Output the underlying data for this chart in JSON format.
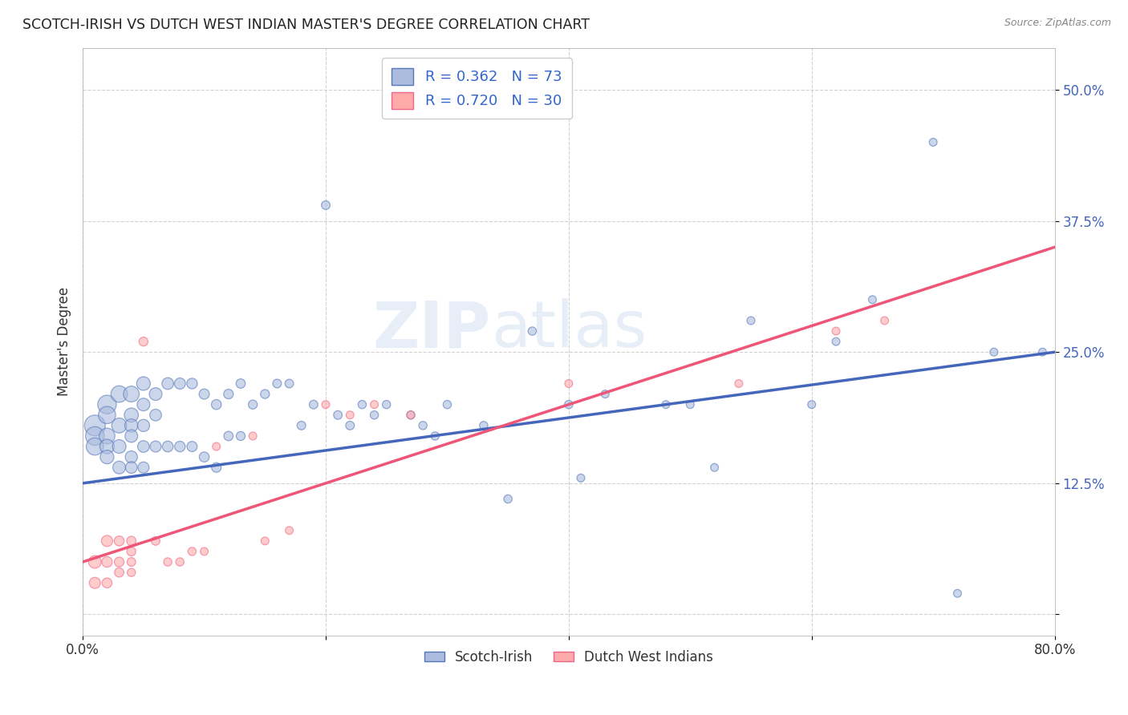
{
  "title": "SCOTCH-IRISH VS DUTCH WEST INDIAN MASTER'S DEGREE CORRELATION CHART",
  "source_text": "Source: ZipAtlas.com",
  "ylabel": "Master's Degree",
  "xlim": [
    0.0,
    0.8
  ],
  "ylim": [
    -0.02,
    0.54
  ],
  "yticks": [
    0.0,
    0.125,
    0.25,
    0.375,
    0.5
  ],
  "ytick_labels": [
    "",
    "12.5%",
    "25.0%",
    "37.5%",
    "50.0%"
  ],
  "xticks": [
    0.0,
    0.2,
    0.4,
    0.6,
    0.8
  ],
  "xtick_labels": [
    "0.0%",
    "",
    "",
    "",
    "80.0%"
  ],
  "blue_R": 0.362,
  "blue_N": 73,
  "pink_R": 0.72,
  "pink_N": 30,
  "blue_color": "#aabbdd",
  "pink_color": "#ffaaaa",
  "blue_edge_color": "#5577bb",
  "pink_edge_color": "#ee6688",
  "blue_line_color": "#4466bb",
  "pink_line_color": "#ee5577",
  "legend_label_blue": "Scotch-Irish",
  "legend_label_pink": "Dutch West Indians",
  "watermark_zip": "ZIP",
  "watermark_atlas": "atlas",
  "background_color": "#ffffff",
  "blue_line_x0": 0.0,
  "blue_line_y0": 0.125,
  "blue_line_x1": 0.8,
  "blue_line_y1": 0.25,
  "pink_line_x0": 0.0,
  "pink_line_y0": 0.05,
  "pink_line_x1": 0.8,
  "pink_line_y1": 0.35,
  "blue_scatter_x": [
    0.01,
    0.01,
    0.01,
    0.02,
    0.02,
    0.02,
    0.02,
    0.02,
    0.03,
    0.03,
    0.03,
    0.03,
    0.04,
    0.04,
    0.04,
    0.04,
    0.04,
    0.04,
    0.05,
    0.05,
    0.05,
    0.05,
    0.05,
    0.06,
    0.06,
    0.06,
    0.07,
    0.07,
    0.08,
    0.08,
    0.09,
    0.09,
    0.1,
    0.1,
    0.11,
    0.11,
    0.12,
    0.12,
    0.13,
    0.13,
    0.14,
    0.15,
    0.16,
    0.17,
    0.18,
    0.19,
    0.2,
    0.21,
    0.22,
    0.23,
    0.24,
    0.25,
    0.27,
    0.28,
    0.29,
    0.3,
    0.33,
    0.35,
    0.37,
    0.4,
    0.41,
    0.43,
    0.48,
    0.5,
    0.52,
    0.55,
    0.6,
    0.62,
    0.65,
    0.7,
    0.72,
    0.75,
    0.79
  ],
  "blue_scatter_y": [
    0.18,
    0.17,
    0.16,
    0.2,
    0.19,
    0.17,
    0.16,
    0.15,
    0.21,
    0.18,
    0.16,
    0.14,
    0.21,
    0.19,
    0.18,
    0.17,
    0.15,
    0.14,
    0.22,
    0.2,
    0.18,
    0.16,
    0.14,
    0.21,
    0.19,
    0.16,
    0.22,
    0.16,
    0.22,
    0.16,
    0.22,
    0.16,
    0.21,
    0.15,
    0.2,
    0.14,
    0.21,
    0.17,
    0.22,
    0.17,
    0.2,
    0.21,
    0.22,
    0.22,
    0.18,
    0.2,
    0.39,
    0.19,
    0.18,
    0.2,
    0.19,
    0.2,
    0.19,
    0.18,
    0.17,
    0.2,
    0.18,
    0.11,
    0.27,
    0.2,
    0.13,
    0.21,
    0.2,
    0.2,
    0.14,
    0.28,
    0.2,
    0.26,
    0.3,
    0.45,
    0.02,
    0.25,
    0.25
  ],
  "blue_scatter_sizes": [
    350,
    280,
    240,
    280,
    240,
    200,
    170,
    150,
    220,
    180,
    150,
    130,
    200,
    160,
    140,
    130,
    120,
    110,
    150,
    130,
    120,
    110,
    100,
    130,
    110,
    100,
    110,
    95,
    100,
    90,
    90,
    85,
    85,
    80,
    80,
    75,
    75,
    70,
    70,
    65,
    65,
    65,
    60,
    60,
    60,
    60,
    60,
    60,
    60,
    55,
    55,
    55,
    55,
    55,
    55,
    55,
    55,
    55,
    55,
    55,
    50,
    50,
    50,
    50,
    50,
    50,
    50,
    50,
    50,
    50,
    50,
    50,
    50
  ],
  "pink_scatter_x": [
    0.01,
    0.01,
    0.02,
    0.02,
    0.02,
    0.03,
    0.03,
    0.03,
    0.04,
    0.04,
    0.04,
    0.04,
    0.05,
    0.06,
    0.07,
    0.08,
    0.09,
    0.1,
    0.11,
    0.14,
    0.15,
    0.17,
    0.2,
    0.22,
    0.24,
    0.27,
    0.4,
    0.54,
    0.62,
    0.66
  ],
  "pink_scatter_y": [
    0.05,
    0.03,
    0.07,
    0.05,
    0.03,
    0.07,
    0.05,
    0.04,
    0.07,
    0.06,
    0.05,
    0.04,
    0.26,
    0.07,
    0.05,
    0.05,
    0.06,
    0.06,
    0.16,
    0.17,
    0.07,
    0.08,
    0.2,
    0.19,
    0.2,
    0.19,
    0.22,
    0.22,
    0.27,
    0.28
  ],
  "pink_scatter_sizes": [
    130,
    100,
    100,
    90,
    80,
    80,
    75,
    70,
    70,
    65,
    60,
    55,
    65,
    60,
    55,
    55,
    55,
    50,
    50,
    50,
    50,
    50,
    50,
    50,
    50,
    50,
    50,
    50,
    50,
    50
  ]
}
